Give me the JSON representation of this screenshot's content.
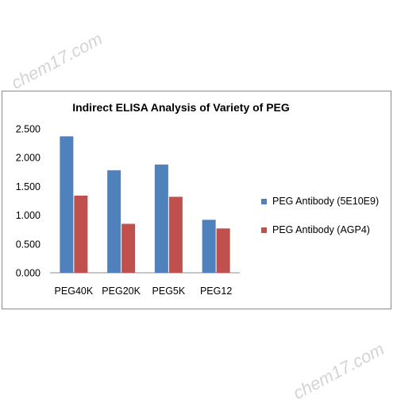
{
  "watermarks": [
    "chem17.com",
    "chem17.com"
  ],
  "chart_data": {
    "type": "bar",
    "title": "Indirect ELISA Analysis of Variety of PEG",
    "xlabel": "",
    "ylabel": "",
    "categories": [
      "PEG40K",
      "PEG20K",
      "PEG5K",
      "PEG12"
    ],
    "series": [
      {
        "name": "PEG Antibody  (5E10E9)",
        "color": "#4f81bd",
        "values": [
          2.37,
          1.78,
          1.88,
          0.92
        ]
      },
      {
        "name": "PEG Antibody  (AGP4)",
        "color": "#c0504d",
        "values": [
          1.34,
          0.85,
          1.32,
          0.77
        ]
      }
    ],
    "ylim": [
      0,
      2.5
    ],
    "yticks": [
      "0.000",
      "0.500",
      "1.000",
      "1.500",
      "2.000",
      "2.500"
    ],
    "grid": false,
    "legend": "right"
  }
}
